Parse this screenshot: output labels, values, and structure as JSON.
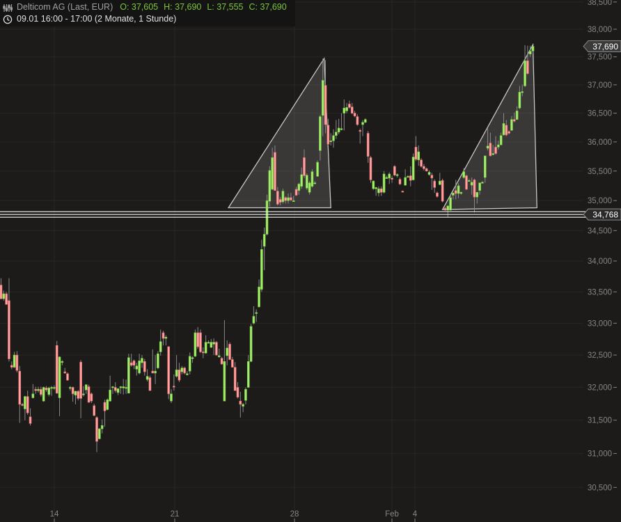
{
  "header": {
    "instrument": "Delticom AG (Last, EUR)",
    "open": "O: 37,605",
    "high": "H: 37,690",
    "low": "L: 37,555",
    "close": "C: 37,690",
    "period": "09.01 16:00 - 17:00 (2 Monate, 1 Stunde)",
    "instrument_icon": "chart-settings-icon",
    "period_icon": "clock-icon"
  },
  "colors": {
    "background": "#1c1b1a",
    "grid": "#272625",
    "up": "#a8ee6e",
    "up_border": "#6cc23a",
    "down": "#ffa3a3",
    "down_border": "#e06464",
    "wick": "#8a8a8a",
    "ohlc_text": "#7cc63a",
    "axis_text": "#858585"
  },
  "chart_data": {
    "type": "candlestick",
    "scale": "log",
    "ylim": [
      30400,
      38600
    ],
    "grid": true,
    "y_ticks": [
      "30,500",
      "31,000",
      "31,500",
      "32,000",
      "32,500",
      "33,000",
      "33,500",
      "34,000",
      "34,500",
      "35,000",
      "35,500",
      "36,000",
      "36,500",
      "37,000",
      "37,500",
      "38,000",
      "38,500"
    ],
    "y_tick_values": [
      30500,
      31000,
      31500,
      32000,
      32500,
      33000,
      33500,
      34000,
      34500,
      35000,
      35500,
      36000,
      36500,
      37000,
      37500,
      38000,
      38500
    ],
    "x_ticks": [
      "14",
      "21",
      "28",
      "Feb",
      "4"
    ],
    "last_price": {
      "label": "37,690",
      "value": 37690
    },
    "horizontal_line": {
      "label": "34,768",
      "value": 34768
    },
    "candles_ohlc": [
      [
        33610,
        33720,
        33380,
        33390
      ],
      [
        33390,
        33520,
        33360,
        33470
      ],
      [
        33470,
        33500,
        33290,
        33300
      ],
      [
        33360,
        33720,
        32400,
        32440
      ],
      [
        32340,
        32400,
        32280,
        32310
      ],
      [
        32310,
        32550,
        32300,
        32500
      ],
      [
        32500,
        32560,
        32230,
        32260
      ],
      [
        32250,
        32330,
        31460,
        31740
      ],
      [
        31740,
        31760,
        31710,
        31730
      ],
      [
        31670,
        31870,
        31500,
        31860
      ],
      [
        31860,
        31950,
        31580,
        31610
      ],
      [
        31550,
        31680,
        31420,
        31450
      ],
      [
        31840,
        32050,
        31830,
        31900
      ],
      [
        31970,
        32010,
        31900,
        31950
      ],
      [
        31950,
        32010,
        31920,
        31970
      ],
      [
        31970,
        32010,
        31860,
        31890
      ],
      [
        31790,
        32010,
        31780,
        32000
      ],
      [
        31990,
        32020,
        31930,
        31960
      ],
      [
        31890,
        32010,
        31860,
        31990
      ],
      [
        32000,
        32020,
        31870,
        32000
      ],
      [
        32000,
        32030,
        31960,
        32000
      ],
      [
        32650,
        32720,
        31900,
        31910
      ],
      [
        31840,
        32480,
        31560,
        32470
      ],
      [
        32400,
        32420,
        32340,
        32400
      ],
      [
        32240,
        32300,
        32210,
        32220
      ],
      [
        32210,
        32230,
        32100,
        32110
      ],
      [
        32000,
        32020,
        31950,
        32000
      ],
      [
        32000,
        32010,
        31780,
        31900
      ],
      [
        31880,
        31950,
        31740,
        31940
      ],
      [
        31940,
        31960,
        31800,
        31830
      ],
      [
        32390,
        32420,
        31530,
        31830
      ],
      [
        31900,
        32020,
        31860,
        31900
      ],
      [
        31960,
        32050,
        31900,
        32040
      ],
      [
        32010,
        32040,
        31770,
        31770
      ],
      [
        31900,
        31920,
        31760,
        31790
      ],
      [
        31720,
        31750,
        31560,
        31570
      ],
      [
        31540,
        31560,
        31020,
        31180
      ],
      [
        31220,
        31380,
        31210,
        31370
      ],
      [
        31370,
        31510,
        31300,
        31420
      ],
      [
        31770,
        31810,
        31400,
        31640
      ],
      [
        31660,
        31830,
        31650,
        31810
      ],
      [
        31790,
        32180,
        31780,
        31960
      ],
      [
        32010,
        32020,
        31900,
        32010
      ],
      [
        32000,
        32080,
        31920,
        31950
      ],
      [
        31920,
        31980,
        31880,
        31980
      ],
      [
        32010,
        32020,
        31900,
        32010
      ],
      [
        31990,
        32130,
        31890,
        32010
      ],
      [
        32000,
        32120,
        31900,
        32000
      ],
      [
        31910,
        32520,
        31910,
        32460
      ],
      [
        32380,
        32520,
        32320,
        32340
      ],
      [
        32410,
        32430,
        32280,
        32340
      ],
      [
        32280,
        32380,
        32180,
        32330
      ],
      [
        32220,
        32520,
        32200,
        32410
      ],
      [
        32380,
        32500,
        32300,
        32450
      ],
      [
        32400,
        32440,
        32180,
        32240
      ],
      [
        32120,
        32280,
        32090,
        32170
      ],
      [
        32150,
        32180,
        31950,
        31950
      ],
      [
        32250,
        32590,
        32220,
        32220
      ],
      [
        32220,
        32500,
        32050,
        32250
      ],
      [
        32300,
        32560,
        32280,
        32520
      ],
      [
        32550,
        32900,
        32490,
        32710
      ],
      [
        32850,
        32880,
        32650,
        32760
      ],
      [
        32760,
        32810,
        32650,
        32780
      ],
      [
        32630,
        32640,
        31820,
        31900
      ],
      [
        31790,
        31970,
        31760,
        31900
      ],
      [
        32020,
        32200,
        31950,
        32010
      ],
      [
        32170,
        32500,
        32150,
        32270
      ],
      [
        32270,
        32380,
        32080,
        32110
      ],
      [
        32240,
        32330,
        32200,
        32300
      ],
      [
        32300,
        32320,
        32200,
        32220
      ],
      [
        32200,
        32250,
        32180,
        32210
      ],
      [
        32250,
        32540,
        32200,
        32480
      ],
      [
        32460,
        32480,
        32380,
        32460
      ],
      [
        32480,
        32900,
        32470,
        32850
      ],
      [
        32850,
        32940,
        32600,
        32630
      ],
      [
        32850,
        32900,
        32530,
        32550
      ],
      [
        32550,
        32620,
        32450,
        32540
      ],
      [
        32530,
        32810,
        32520,
        32700
      ],
      [
        32700,
        32730,
        32690,
        32700
      ],
      [
        32620,
        32750,
        32610,
        32700
      ],
      [
        32670,
        32760,
        32500,
        32700
      ],
      [
        32700,
        32720,
        32490,
        32500
      ],
      [
        32470,
        32600,
        32460,
        32490
      ],
      [
        32450,
        32470,
        32350,
        32360
      ],
      [
        31790,
        33050,
        31790,
        32400
      ],
      [
        32490,
        32730,
        32340,
        32610
      ],
      [
        32670,
        32700,
        32420,
        32430
      ],
      [
        32430,
        32470,
        32310,
        32310
      ],
      [
        32310,
        32390,
        31950,
        31950
      ],
      [
        32000,
        32080,
        31830,
        31850
      ],
      [
        31790,
        31930,
        31540,
        31740
      ],
      [
        31710,
        31760,
        31620,
        31740
      ],
      [
        31800,
        32000,
        31740,
        31970
      ],
      [
        32000,
        32500,
        31990,
        32400
      ],
      [
        32400,
        32990,
        32390,
        32950
      ],
      [
        33000,
        33270,
        32980,
        33110
      ],
      [
        33170,
        33220,
        33020,
        33170
      ],
      [
        33260,
        33700,
        33250,
        33580
      ],
      [
        33540,
        34350,
        33500,
        34190
      ],
      [
        34240,
        34550,
        33850,
        34440
      ],
      [
        34440,
        35100,
        34420,
        35000
      ],
      [
        34990,
        35580,
        34900,
        35510
      ],
      [
        35190,
        35900,
        35180,
        35730
      ],
      [
        35820,
        35940,
        35170,
        35170
      ],
      [
        35160,
        35230,
        34920,
        34940
      ],
      [
        35020,
        35060,
        34920,
        34970
      ],
      [
        34980,
        35200,
        34950,
        35160
      ],
      [
        35050,
        35070,
        34950,
        35000
      ],
      [
        35000,
        35120,
        34950,
        35050
      ],
      [
        35050,
        35130,
        34990,
        35010
      ],
      [
        35000,
        35080,
        34990,
        35000
      ],
      [
        35190,
        35230,
        35080,
        35090
      ],
      [
        35170,
        35300,
        35100,
        35280
      ],
      [
        35240,
        35560,
        35200,
        35440
      ],
      [
        35730,
        35870,
        35380,
        35420
      ],
      [
        35210,
        35460,
        35180,
        35430
      ],
      [
        35140,
        35330,
        35100,
        35300
      ],
      [
        35240,
        35530,
        35220,
        35490
      ],
      [
        35300,
        35330,
        35280,
        35300
      ],
      [
        35410,
        35680,
        35400,
        35650
      ],
      [
        35850,
        36470,
        35680,
        36440
      ],
      [
        36460,
        37470,
        36100,
        37080
      ],
      [
        36990,
        37440,
        36150,
        36300
      ],
      [
        36290,
        36400,
        35940,
        35960
      ],
      [
        36020,
        36150,
        35940,
        36020
      ],
      [
        36020,
        36220,
        35900,
        36110
      ],
      [
        36110,
        36380,
        36050,
        36170
      ],
      [
        36170,
        36400,
        36130,
        36240
      ],
      [
        36230,
        36500,
        36200,
        36230
      ],
      [
        36500,
        36740,
        36200,
        36590
      ],
      [
        36540,
        36680,
        36500,
        36600
      ],
      [
        36660,
        36720,
        36580,
        36600
      ],
      [
        36610,
        36680,
        36480,
        36500
      ],
      [
        36500,
        36540,
        36430,
        36450
      ],
      [
        36440,
        36480,
        36280,
        36300
      ],
      [
        36200,
        36230,
        35970,
        36190
      ],
      [
        36300,
        36380,
        36100,
        36340
      ],
      [
        36340,
        36410,
        36330,
        36390
      ],
      [
        36150,
        36190,
        35640,
        35750
      ],
      [
        35730,
        35760,
        35300,
        35350
      ],
      [
        35200,
        35340,
        35180,
        35330
      ],
      [
        35200,
        35230,
        35080,
        35220
      ],
      [
        35130,
        35240,
        35070,
        35200
      ],
      [
        35200,
        35240,
        35080,
        35140
      ],
      [
        35140,
        35500,
        35120,
        35450
      ],
      [
        35390,
        35420,
        35370,
        35390
      ],
      [
        35380,
        35480,
        35280,
        35450
      ],
      [
        35380,
        35420,
        35300,
        35360
      ],
      [
        35580,
        35600,
        35410,
        35430
      ],
      [
        35440,
        35460,
        35390,
        35440
      ],
      [
        35360,
        35390,
        35260,
        35280
      ],
      [
        35160,
        35170,
        35140,
        35150
      ],
      [
        35260,
        35530,
        35250,
        35390
      ],
      [
        35410,
        35430,
        35400,
        35410
      ],
      [
        35420,
        35580,
        35240,
        35340
      ],
      [
        35350,
        35800,
        35340,
        35740
      ],
      [
        35910,
        36100,
        35670,
        35700
      ],
      [
        35690,
        35940,
        35590,
        35830
      ],
      [
        35690,
        35720,
        35560,
        35580
      ],
      [
        35580,
        35620,
        35510,
        35540
      ],
      [
        35540,
        35560,
        35490,
        35500
      ],
      [
        35440,
        35510,
        35420,
        35480
      ],
      [
        35430,
        35470,
        35180,
        35380
      ],
      [
        35330,
        35360,
        35130,
        35220
      ],
      [
        35130,
        35150,
        35050,
        35070
      ],
      [
        35270,
        35470,
        35260,
        35330
      ],
      [
        35340,
        35370,
        34970,
        34990
      ],
      [
        34870,
        34890,
        34830,
        34840
      ],
      [
        34840,
        34920,
        34720,
        34910
      ],
      [
        34840,
        35110,
        34830,
        35050
      ],
      [
        35090,
        35130,
        35020,
        35130
      ],
      [
        35170,
        35350,
        35020,
        35120
      ],
      [
        35120,
        35290,
        35040,
        35250
      ],
      [
        35120,
        35150,
        35100,
        35140
      ],
      [
        35390,
        35550,
        35370,
        35490
      ],
      [
        35420,
        35440,
        35180,
        35190
      ],
      [
        35340,
        35370,
        35320,
        35340
      ],
      [
        35260,
        35390,
        35100,
        35310
      ],
      [
        35350,
        35370,
        34800,
        35060
      ],
      [
        35060,
        35140,
        34950,
        35140
      ],
      [
        35170,
        35300,
        35100,
        35300
      ],
      [
        35310,
        35330,
        35300,
        35310
      ],
      [
        35390,
        35760,
        35300,
        35760
      ],
      [
        35890,
        36230,
        35850,
        35930
      ],
      [
        35980,
        36160,
        35750,
        35760
      ],
      [
        35780,
        35950,
        35770,
        35800
      ],
      [
        35910,
        36100,
        35780,
        35800
      ],
      [
        35910,
        36020,
        35870,
        35950
      ],
      [
        35950,
        36160,
        35940,
        36110
      ],
      [
        36120,
        36500,
        36110,
        36320
      ],
      [
        36290,
        36380,
        36100,
        36120
      ],
      [
        36180,
        36200,
        36130,
        36150
      ],
      [
        36200,
        36450,
        36190,
        36390
      ],
      [
        36390,
        36510,
        36340,
        36360
      ],
      [
        36390,
        36620,
        36380,
        36540
      ],
      [
        36590,
        36980,
        36570,
        36870
      ],
      [
        36880,
        37000,
        36800,
        36880
      ],
      [
        36980,
        37710,
        36960,
        37430
      ],
      [
        37430,
        37700,
        37180,
        37200
      ],
      [
        37550,
        37700,
        37500,
        37600
      ],
      [
        37605,
        37690,
        37555,
        37690
      ]
    ]
  }
}
